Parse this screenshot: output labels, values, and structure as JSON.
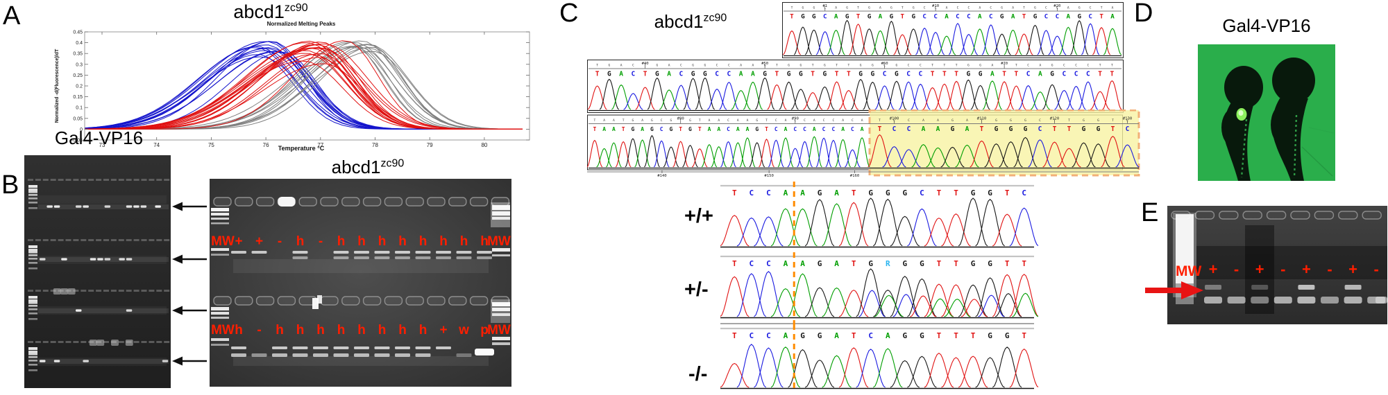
{
  "figure": {
    "background": "#ffffff"
  },
  "chart_data": {
    "type": "line",
    "title": "Normalized Melting Peaks",
    "xlabel": "Temperature °C",
    "ylabel": "Normalized -d(Fluorescence)/dT",
    "x_ticks": [
      73,
      74,
      75,
      76,
      77,
      78,
      79,
      80
    ],
    "y_ticks": [
      -0.05,
      0,
      0.05,
      0.1,
      0.15,
      0.2,
      0.25,
      0.3,
      0.35,
      0.4,
      0.45
    ],
    "xlim": [
      72.6,
      80.8
    ],
    "ylim": [
      -0.05,
      0.45
    ],
    "grid": false,
    "legend": "none",
    "series": [
      {
        "name": "cluster-blue",
        "color": "#1414cc",
        "count": 14,
        "center": 76.05,
        "center_spread": 0.55,
        "sd": 0.82,
        "height_min": 0.33,
        "height_max": 0.42
      },
      {
        "name": "cluster-gray",
        "color": "#7f7f7f",
        "count": 12,
        "center": 77.72,
        "center_spread": 0.5,
        "sd": 0.8,
        "height_min": 0.36,
        "height_max": 0.42
      },
      {
        "name": "cluster-red",
        "color": "#e01010",
        "count": 17,
        "center": 76.85,
        "center_spread": 0.45,
        "sd": 0.88,
        "height_min": 0.3,
        "height_max": 0.41,
        "outliers": [
          {
            "center": 77.45,
            "height": 0.41,
            "sd": 0.75
          }
        ]
      }
    ]
  },
  "panel_a": {
    "label": "A",
    "title": "abcd1",
    "title_sup": "zc90"
  },
  "panel_b": {
    "label": "B",
    "left_gel": {
      "title": "Gal4-VP16",
      "lanes": 18,
      "rows": [
        {
          "bands": [
            1,
            2,
            5,
            6,
            9,
            12,
            13,
            14,
            16
          ],
          "glow": []
        },
        {
          "bands": [
            0,
            3,
            7,
            8,
            9,
            11,
            12
          ],
          "glow": []
        },
        {
          "bands": [
            5,
            12
          ],
          "glow": [
            2,
            3,
            4
          ]
        },
        {
          "bands": [
            0,
            2,
            6,
            17
          ],
          "glow": [
            7,
            8,
            10,
            12
          ]
        }
      ]
    },
    "right_gel": {
      "title": "abcd1",
      "title_sup": "zc90",
      "label_color": "#ff1e00",
      "top_labels": [
        "MW",
        "+",
        "+",
        "-",
        "h",
        "-",
        "h",
        "h",
        "h",
        "h",
        "h",
        "h",
        "h",
        "h",
        "MW"
      ],
      "bottom_labels": [
        "MW",
        "h",
        "-",
        "h",
        "h",
        "h",
        "h",
        "h",
        "h",
        "h",
        "h",
        "+",
        "w",
        "p",
        "MW"
      ]
    }
  },
  "panel_c": {
    "label": "C",
    "title": "abcd1",
    "title_sup": "zc90",
    "base_colors": {
      "A": "#009e00",
      "C": "#1a1ae0",
      "G": "#161616",
      "T": "#e01212",
      "R": "#28b4f0"
    },
    "highlight": {
      "fill": "#f7f2a2",
      "border": "#f2b078"
    },
    "cut_line_color": "#ff8c00",
    "rows": [
      {
        "seq": "TGGCAGTGAGTGCCACCACGATGCCAGCTA",
        "markers": [
          {
            "t": "#1",
            "i": 3
          },
          {
            "t": "#10",
            "i": 13
          },
          {
            "t": "#20",
            "i": 24
          }
        ]
      },
      {
        "seq": "TGACTGACGGCCAAGTGGTGTTGGCGCCTTTGGATTCAGCCCTT",
        "markers": [
          {
            "t": "#40",
            "i": 4
          },
          {
            "t": "#50",
            "i": 14
          },
          {
            "t": "#60",
            "i": 24
          },
          {
            "t": "#70",
            "i": 34
          }
        ]
      },
      {
        "seq": "TAATGAGCGTGTAACAAGTCACCACCACA",
        "highlight_seq": "TCCAAGATGGGCTTGGTC",
        "markers": [
          {
            "t": "#80",
            "i": 9
          },
          {
            "t": "#90",
            "i": 21
          },
          {
            "t": "#100",
            "i": 30
          },
          {
            "t": "#110",
            "i": 36
          },
          {
            "t": "#120",
            "i": 41
          },
          {
            "t": "#130",
            "i": 46
          }
        ],
        "bottom_markers": [
          {
            "t": "#140",
            "f": 0.14
          },
          {
            "t": "#150",
            "f": 0.34
          },
          {
            "t": "#160",
            "f": 0.5
          }
        ]
      }
    ],
    "genotypes": [
      {
        "label": "+/+",
        "seq": "TCCAAGATGGGCTTGGTC"
      },
      {
        "label": "+/-",
        "seq": "TCCAAGATGRGGTTGGTT",
        "mixed_from": 8
      },
      {
        "label": "-/-",
        "seq": "TCCAGGATCAGGTTTGGT"
      }
    ],
    "cut_after_base": 4
  },
  "panel_d": {
    "label": "D",
    "title": "Gal4-VP16",
    "background": "#2eb34e"
  },
  "panel_e": {
    "label": "E",
    "mw_label": "MW",
    "lane_labels": [
      "+",
      "-",
      "+",
      "-",
      "+",
      "-",
      "+",
      "-"
    ],
    "label_color": "#ff1e00",
    "arrow_color": "#e81414"
  }
}
